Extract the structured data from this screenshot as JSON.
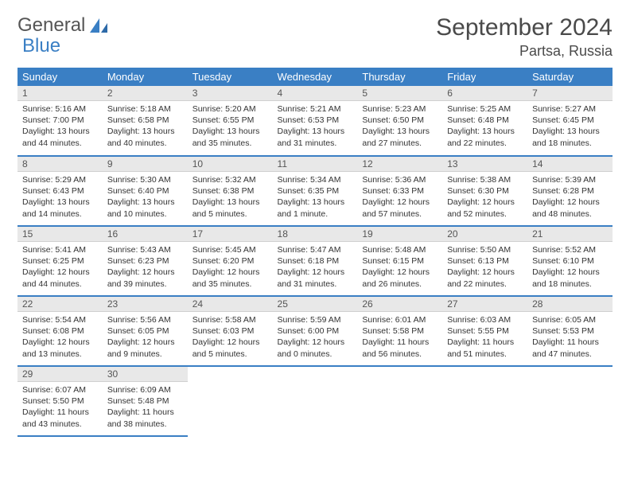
{
  "logo": {
    "text1": "General",
    "text2": "Blue"
  },
  "title": {
    "month": "September 2024",
    "location": "Partsa, Russia"
  },
  "weekdays": [
    "Sunday",
    "Monday",
    "Tuesday",
    "Wednesday",
    "Thursday",
    "Friday",
    "Saturday"
  ],
  "colors": {
    "accent": "#3a7fc4",
    "header_text": "#4a4a4a",
    "daynum_bg": "#e8e8e8"
  },
  "grid": {
    "rows": 5,
    "cols": 7
  },
  "days": [
    {
      "n": "1",
      "sr": "5:16 AM",
      "ss": "7:00 PM",
      "dl": "13 hours and 44 minutes."
    },
    {
      "n": "2",
      "sr": "5:18 AM",
      "ss": "6:58 PM",
      "dl": "13 hours and 40 minutes."
    },
    {
      "n": "3",
      "sr": "5:20 AM",
      "ss": "6:55 PM",
      "dl": "13 hours and 35 minutes."
    },
    {
      "n": "4",
      "sr": "5:21 AM",
      "ss": "6:53 PM",
      "dl": "13 hours and 31 minutes."
    },
    {
      "n": "5",
      "sr": "5:23 AM",
      "ss": "6:50 PM",
      "dl": "13 hours and 27 minutes."
    },
    {
      "n": "6",
      "sr": "5:25 AM",
      "ss": "6:48 PM",
      "dl": "13 hours and 22 minutes."
    },
    {
      "n": "7",
      "sr": "5:27 AM",
      "ss": "6:45 PM",
      "dl": "13 hours and 18 minutes."
    },
    {
      "n": "8",
      "sr": "5:29 AM",
      "ss": "6:43 PM",
      "dl": "13 hours and 14 minutes."
    },
    {
      "n": "9",
      "sr": "5:30 AM",
      "ss": "6:40 PM",
      "dl": "13 hours and 10 minutes."
    },
    {
      "n": "10",
      "sr": "5:32 AM",
      "ss": "6:38 PM",
      "dl": "13 hours and 5 minutes."
    },
    {
      "n": "11",
      "sr": "5:34 AM",
      "ss": "6:35 PM",
      "dl": "13 hours and 1 minute."
    },
    {
      "n": "12",
      "sr": "5:36 AM",
      "ss": "6:33 PM",
      "dl": "12 hours and 57 minutes."
    },
    {
      "n": "13",
      "sr": "5:38 AM",
      "ss": "6:30 PM",
      "dl": "12 hours and 52 minutes."
    },
    {
      "n": "14",
      "sr": "5:39 AM",
      "ss": "6:28 PM",
      "dl": "12 hours and 48 minutes."
    },
    {
      "n": "15",
      "sr": "5:41 AM",
      "ss": "6:25 PM",
      "dl": "12 hours and 44 minutes."
    },
    {
      "n": "16",
      "sr": "5:43 AM",
      "ss": "6:23 PM",
      "dl": "12 hours and 39 minutes."
    },
    {
      "n": "17",
      "sr": "5:45 AM",
      "ss": "6:20 PM",
      "dl": "12 hours and 35 minutes."
    },
    {
      "n": "18",
      "sr": "5:47 AM",
      "ss": "6:18 PM",
      "dl": "12 hours and 31 minutes."
    },
    {
      "n": "19",
      "sr": "5:48 AM",
      "ss": "6:15 PM",
      "dl": "12 hours and 26 minutes."
    },
    {
      "n": "20",
      "sr": "5:50 AM",
      "ss": "6:13 PM",
      "dl": "12 hours and 22 minutes."
    },
    {
      "n": "21",
      "sr": "5:52 AM",
      "ss": "6:10 PM",
      "dl": "12 hours and 18 minutes."
    },
    {
      "n": "22",
      "sr": "5:54 AM",
      "ss": "6:08 PM",
      "dl": "12 hours and 13 minutes."
    },
    {
      "n": "23",
      "sr": "5:56 AM",
      "ss": "6:05 PM",
      "dl": "12 hours and 9 minutes."
    },
    {
      "n": "24",
      "sr": "5:58 AM",
      "ss": "6:03 PM",
      "dl": "12 hours and 5 minutes."
    },
    {
      "n": "25",
      "sr": "5:59 AM",
      "ss": "6:00 PM",
      "dl": "12 hours and 0 minutes."
    },
    {
      "n": "26",
      "sr": "6:01 AM",
      "ss": "5:58 PM",
      "dl": "11 hours and 56 minutes."
    },
    {
      "n": "27",
      "sr": "6:03 AM",
      "ss": "5:55 PM",
      "dl": "11 hours and 51 minutes."
    },
    {
      "n": "28",
      "sr": "6:05 AM",
      "ss": "5:53 PM",
      "dl": "11 hours and 47 minutes."
    },
    {
      "n": "29",
      "sr": "6:07 AM",
      "ss": "5:50 PM",
      "dl": "11 hours and 43 minutes."
    },
    {
      "n": "30",
      "sr": "6:09 AM",
      "ss": "5:48 PM",
      "dl": "11 hours and 38 minutes."
    }
  ],
  "labels": {
    "sunrise": "Sunrise:",
    "sunset": "Sunset:",
    "daylight": "Daylight:"
  }
}
